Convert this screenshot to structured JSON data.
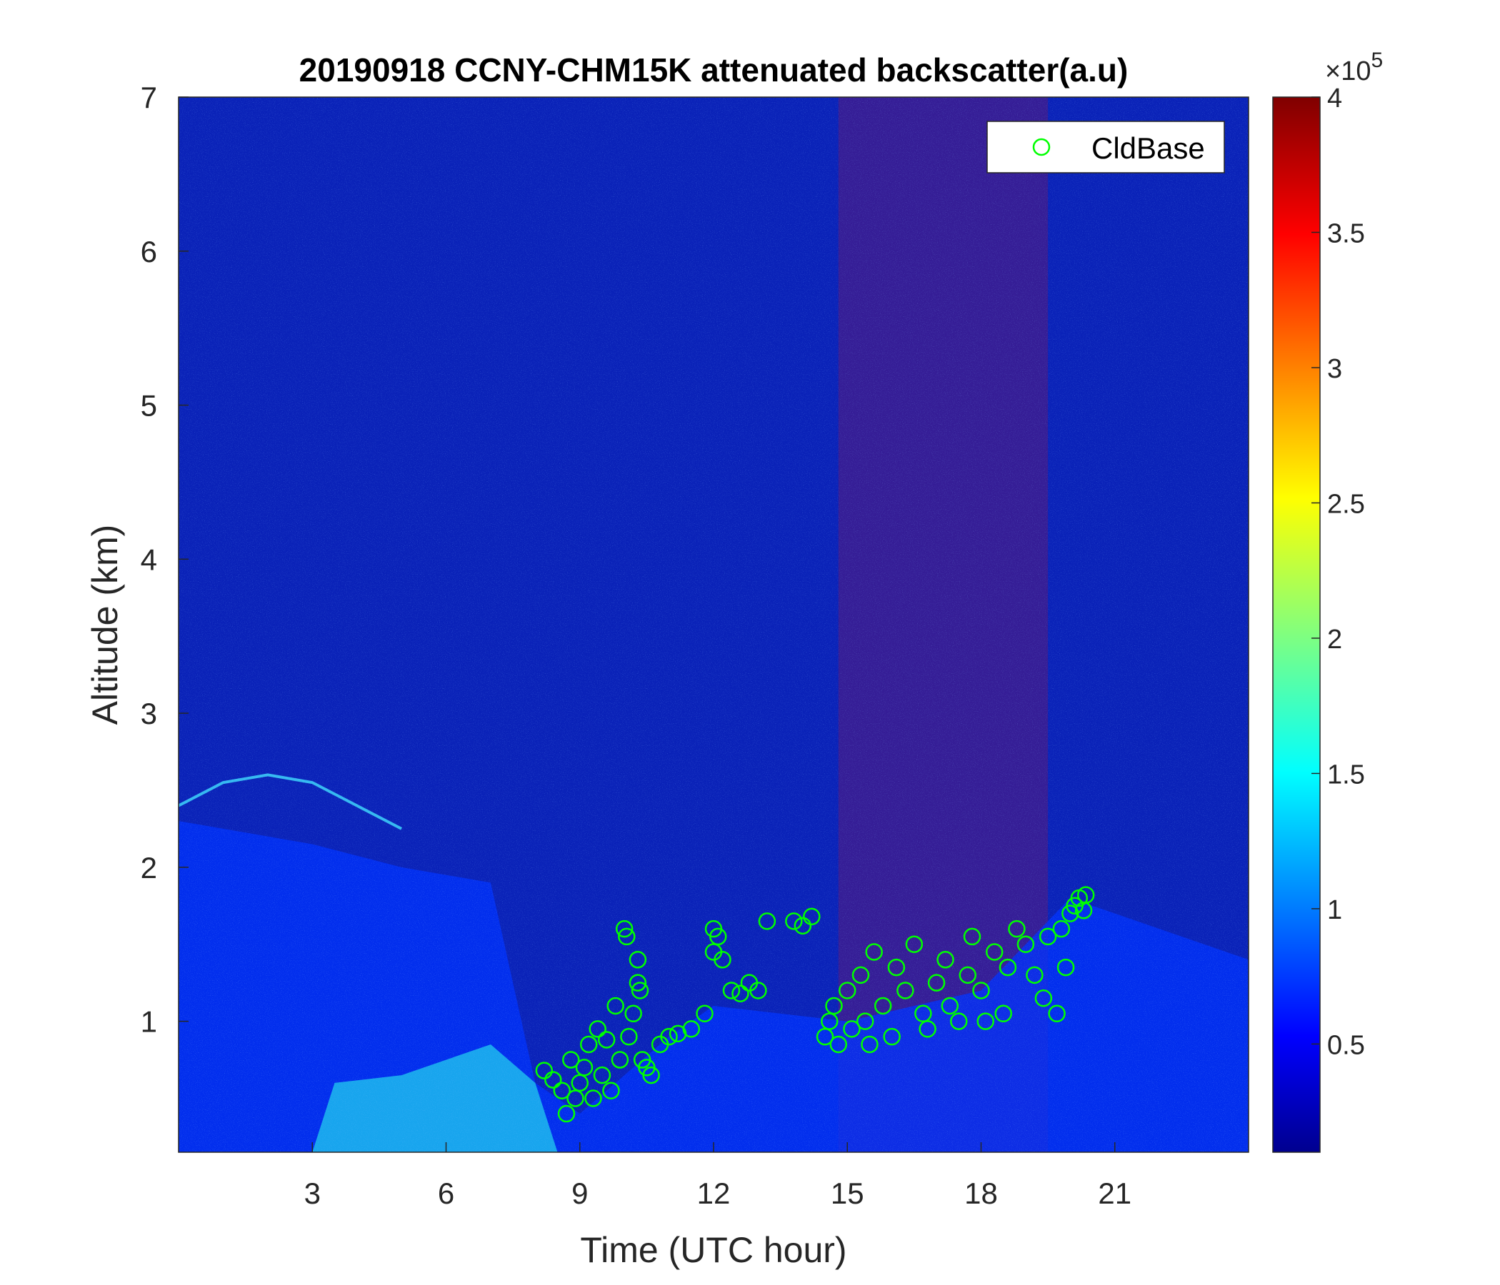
{
  "chart_data": {
    "type": "heatmap",
    "title": "20190918 CCNY-CHM15K attenuated backscatter(a.u)",
    "xlabel": "Time (UTC hour)",
    "ylabel": "Altitude (km)",
    "xlim": [
      0,
      24
    ],
    "ylim": [
      0.15,
      7
    ],
    "xticks": [
      3,
      6,
      9,
      12,
      15,
      18,
      21
    ],
    "yticks": [
      1,
      2,
      3,
      4,
      5,
      6,
      7
    ],
    "colormap": "jet",
    "colorbar": {
      "min": 0.1,
      "max": 4,
      "ticks": [
        0.5,
        1,
        1.5,
        2,
        2.5,
        3,
        3.5,
        4
      ],
      "exponent_label": "×10",
      "exponent_power": "5"
    },
    "legend": {
      "position": "top-right",
      "entries": [
        {
          "name": "CldBase",
          "marker": "circle",
          "color": "#00ff00"
        }
      ]
    },
    "features": {
      "boundary_layer_top": [
        [
          0,
          2.3
        ],
        [
          3,
          2.15
        ],
        [
          5,
          2.0
        ],
        [
          7,
          1.9
        ],
        [
          8,
          0.6
        ],
        [
          9,
          0.4
        ],
        [
          11,
          0.9
        ],
        [
          12,
          1.1
        ],
        [
          15,
          1.0
        ],
        [
          18,
          1.2
        ],
        [
          20,
          1.8
        ],
        [
          22,
          1.6
        ],
        [
          24,
          1.4
        ]
      ],
      "residual_layer_line": [
        [
          0,
          2.4
        ],
        [
          1,
          2.55
        ],
        [
          2,
          2.6
        ],
        [
          3,
          2.55
        ],
        [
          4,
          2.4
        ],
        [
          5,
          2.25
        ]
      ],
      "high_noise_band_hours": [
        14.8,
        19.5
      ]
    },
    "series": [
      {
        "name": "CldBase",
        "type": "scatter",
        "points": [
          [
            8.2,
            0.68
          ],
          [
            8.4,
            0.62
          ],
          [
            8.6,
            0.55
          ],
          [
            8.7,
            0.4
          ],
          [
            8.8,
            0.75
          ],
          [
            8.9,
            0.5
          ],
          [
            9.0,
            0.6
          ],
          [
            9.1,
            0.7
          ],
          [
            9.2,
            0.85
          ],
          [
            9.3,
            0.5
          ],
          [
            9.4,
            0.95
          ],
          [
            9.5,
            0.65
          ],
          [
            9.6,
            0.88
          ],
          [
            9.7,
            0.55
          ],
          [
            9.8,
            1.1
          ],
          [
            9.9,
            0.75
          ],
          [
            10.0,
            1.6
          ],
          [
            10.05,
            1.55
          ],
          [
            10.1,
            0.9
          ],
          [
            10.2,
            1.05
          ],
          [
            10.3,
            1.4
          ],
          [
            10.3,
            1.25
          ],
          [
            10.35,
            1.2
          ],
          [
            10.4,
            0.75
          ],
          [
            10.5,
            0.7
          ],
          [
            10.6,
            0.65
          ],
          [
            10.8,
            0.85
          ],
          [
            11.0,
            0.9
          ],
          [
            11.2,
            0.92
          ],
          [
            11.5,
            0.95
          ],
          [
            11.8,
            1.05
          ],
          [
            12.0,
            1.45
          ],
          [
            12.0,
            1.6
          ],
          [
            12.1,
            1.55
          ],
          [
            12.2,
            1.4
          ],
          [
            12.4,
            1.2
          ],
          [
            12.6,
            1.18
          ],
          [
            12.8,
            1.25
          ],
          [
            13.0,
            1.2
          ],
          [
            13.2,
            1.65
          ],
          [
            13.8,
            1.65
          ],
          [
            14.0,
            1.62
          ],
          [
            14.2,
            1.68
          ],
          [
            14.5,
            0.9
          ],
          [
            14.6,
            1.0
          ],
          [
            14.7,
            1.1
          ],
          [
            14.8,
            0.85
          ],
          [
            15.0,
            1.2
          ],
          [
            15.1,
            0.95
          ],
          [
            15.3,
            1.3
          ],
          [
            15.4,
            1.0
          ],
          [
            15.5,
            0.85
          ],
          [
            15.6,
            1.45
          ],
          [
            15.8,
            1.1
          ],
          [
            16.0,
            0.9
          ],
          [
            16.1,
            1.35
          ],
          [
            16.3,
            1.2
          ],
          [
            16.5,
            1.5
          ],
          [
            16.7,
            1.05
          ],
          [
            16.8,
            0.95
          ],
          [
            17.0,
            1.25
          ],
          [
            17.2,
            1.4
          ],
          [
            17.3,
            1.1
          ],
          [
            17.5,
            1.0
          ],
          [
            17.7,
            1.3
          ],
          [
            17.8,
            1.55
          ],
          [
            18.0,
            1.2
          ],
          [
            18.1,
            1.0
          ],
          [
            18.3,
            1.45
          ],
          [
            18.5,
            1.05
          ],
          [
            18.6,
            1.35
          ],
          [
            18.8,
            1.6
          ],
          [
            19.0,
            1.5
          ],
          [
            19.2,
            1.3
          ],
          [
            19.4,
            1.15
          ],
          [
            19.5,
            1.55
          ],
          [
            19.7,
            1.05
          ],
          [
            19.8,
            1.6
          ],
          [
            19.9,
            1.35
          ],
          [
            20.0,
            1.7
          ],
          [
            20.1,
            1.75
          ],
          [
            20.2,
            1.8
          ],
          [
            20.3,
            1.72
          ],
          [
            20.35,
            1.82
          ]
        ]
      }
    ]
  }
}
